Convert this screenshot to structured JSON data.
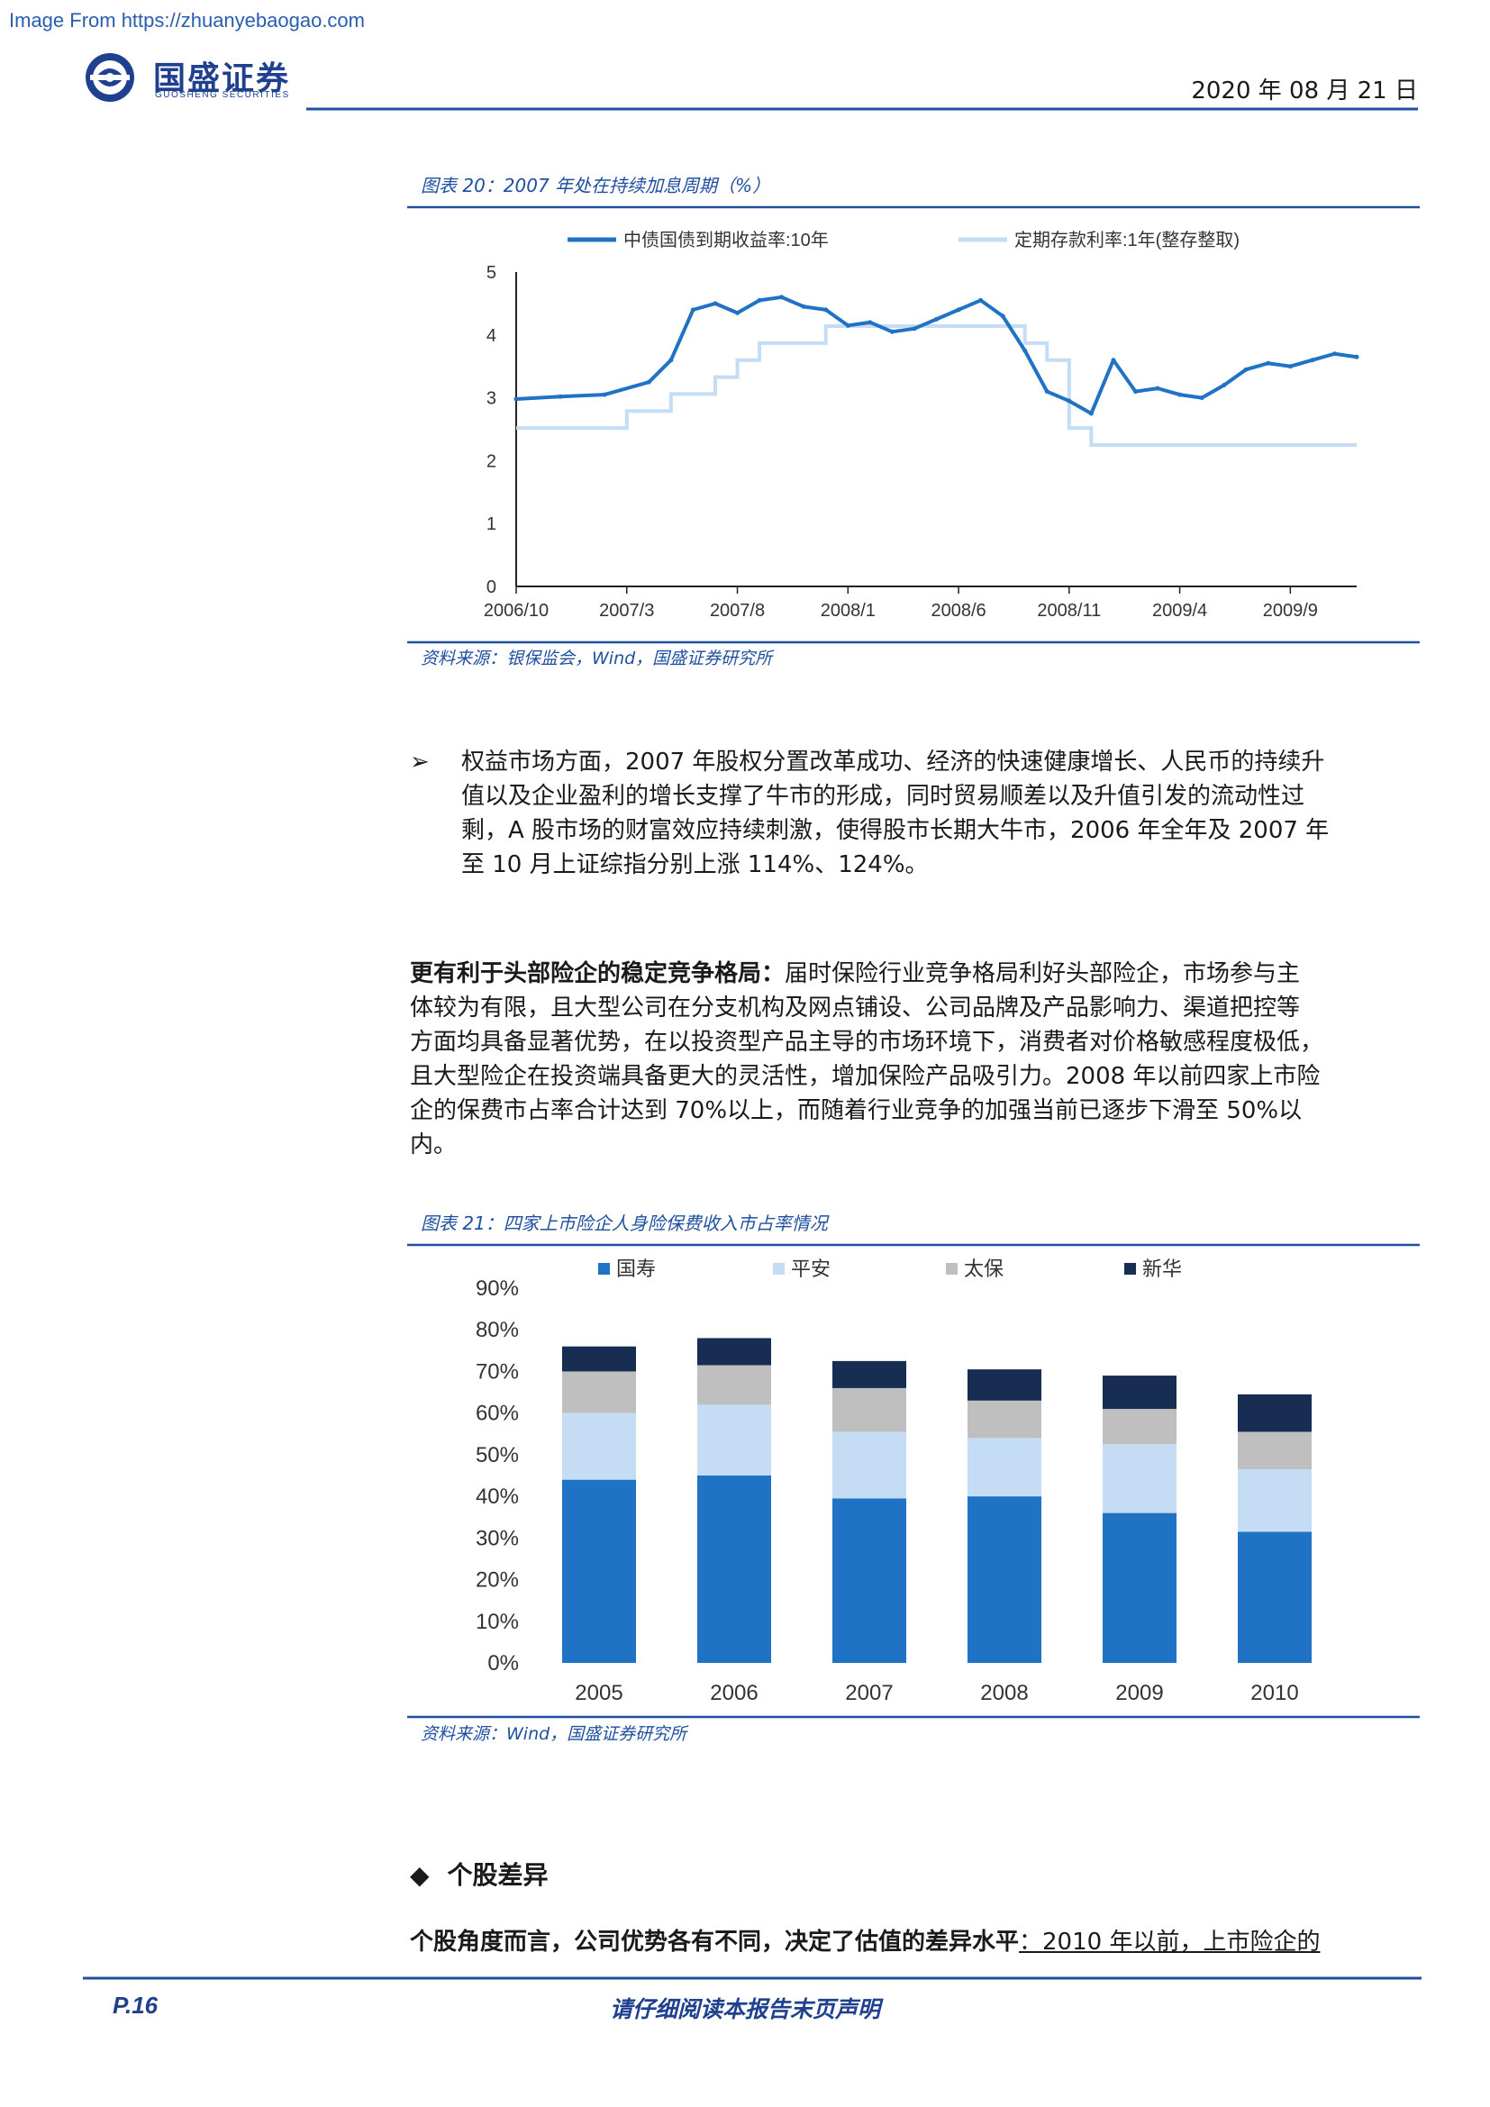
{
  "watermark": "Image From https://zhuanyebaogao.com",
  "header": {
    "logo_cn": "国盛证券",
    "logo_en": "GUOSHENG SECURITIES",
    "date": "2020 年 08 月 21 日"
  },
  "colors": {
    "brand": "#1f3f8f",
    "caption_blue": "#1f4f9f",
    "rule": "#1f4f9f",
    "series_dark": "#1f72c4",
    "series_light": "#c5ddf4",
    "series_gray": "#bfbfbf",
    "series_navy": "#172d52"
  },
  "figure20": {
    "caption": "图表 20：2007 年处在持续加息周期（%）",
    "source": "资料来源：银保监会，Wind，国盛证券研究所"
  },
  "figure21": {
    "caption": "图表 21：四家上市险企人身险保费收入市占率情况",
    "source": "资料来源：Wind，国盛证券研究所"
  },
  "bullet1": {
    "marker": "➢",
    "lines": [
      "权益市场方面，2007 年股权分置改革成功、经济的快速健康增长、人民币的持续升",
      "值以及企业盈利的增长支撑了牛市的形成，同时贸易顺差以及升值引发的流动性过",
      "剩，A 股市场的财富效应持续刺激，使得股市长期大牛市，2006 年全年及 2007 年",
      "至 10 月上证综指分别上涨 114%、124%。"
    ]
  },
  "para2": {
    "bold": "更有利于头部险企的稳定竞争格局：",
    "line1_rest": "届时保险行业竞争格局利好头部险企，市场参与主",
    "lines": [
      "体较为有限，且大型公司在分支机构及网点铺设、公司品牌及产品影响力、渠道把控等",
      "方面均具备显著优势，在以投资型产品主导的市场环境下，消费者对价格敏感程度极低，",
      "且大型险企在投资端具备更大的灵活性，增加保险产品吸引力。2008 年以前四家上市险",
      "企的保费市占率合计达到 70%以上，而随着行业竞争的加强当前已逐步下滑至 50%以",
      "内。"
    ]
  },
  "section": {
    "marker": "◆",
    "title": "个股差异"
  },
  "para3": {
    "bold": "个股角度而言，公司优势各有不同，决定了估值的差异水平",
    "rest": "：2010 年以前，上市险企的"
  },
  "footer": {
    "page": "P.16",
    "note": "请仔细阅读本报告末页声明"
  },
  "chart_data": [
    {
      "type": "line",
      "title": "",
      "xlabel": "",
      "ylabel": "",
      "ylim": [
        0,
        5
      ],
      "yticks": [
        "0",
        "1",
        "2",
        "3",
        "4",
        "5"
      ],
      "x_tick_labels": [
        "2006/10",
        "2007/3",
        "2007/8",
        "2008/1",
        "2008/6",
        "2008/11",
        "2009/4",
        "2009/9"
      ],
      "legend_position": "top",
      "series": [
        {
          "name": "中债国债到期收益率:10年",
          "color": "#1f72c4",
          "x": [
            "2006/10",
            "2006/12",
            "2007/2",
            "2007/4",
            "2007/5",
            "2007/6",
            "2007/7",
            "2007/8",
            "2007/9",
            "2007/10",
            "2007/11",
            "2007/12",
            "2008/1",
            "2008/2",
            "2008/3",
            "2008/4",
            "2008/5",
            "2008/6",
            "2008/7",
            "2008/8",
            "2008/9",
            "2008/10",
            "2008/11",
            "2008/12",
            "2009/1",
            "2009/2",
            "2009/3",
            "2009/4",
            "2009/5",
            "2009/6",
            "2009/7",
            "2009/8",
            "2009/9",
            "2009/10",
            "2009/11",
            "2009/12"
          ],
          "values": [
            2.98,
            3.02,
            3.05,
            3.25,
            3.6,
            4.4,
            4.5,
            4.35,
            4.55,
            4.6,
            4.45,
            4.4,
            4.15,
            4.2,
            4.05,
            4.1,
            4.25,
            4.4,
            4.55,
            4.3,
            3.75,
            3.1,
            2.95,
            2.75,
            3.6,
            3.1,
            3.15,
            3.05,
            3.0,
            3.2,
            3.45,
            3.55,
            3.5,
            3.6,
            3.7,
            3.65
          ]
        },
        {
          "name": "定期存款利率:1年(整存整取)",
          "color": "#c5ddf4",
          "x": [
            "2006/10",
            "2007/3",
            "2007/5",
            "2007/7",
            "2007/8",
            "2007/9",
            "2007/12",
            "2008/9",
            "2008/10",
            "2008/11",
            "2008/12",
            "2009/12"
          ],
          "values": [
            2.52,
            2.79,
            3.06,
            3.33,
            3.6,
            3.87,
            4.14,
            3.87,
            3.6,
            2.52,
            2.25,
            2.25
          ]
        }
      ]
    },
    {
      "type": "bar",
      "stacked": true,
      "title": "",
      "xlabel": "",
      "ylabel": "",
      "ylim": [
        0,
        90
      ],
      "yticks": [
        "0%",
        "10%",
        "20%",
        "30%",
        "40%",
        "50%",
        "60%",
        "70%",
        "80%",
        "90%"
      ],
      "categories": [
        "2005",
        "2006",
        "2007",
        "2008",
        "2009",
        "2010"
      ],
      "legend_position": "top",
      "series": [
        {
          "name": "国寿",
          "color": "#1f72c4",
          "values": [
            44,
            45,
            39.5,
            40,
            36,
            31.5
          ]
        },
        {
          "name": "平安",
          "color": "#c5ddf4",
          "values": [
            16,
            17,
            16,
            14,
            16.5,
            15
          ]
        },
        {
          "name": "太保",
          "color": "#bfbfbf",
          "values": [
            10,
            9.5,
            10.5,
            9,
            8.5,
            9
          ]
        },
        {
          "name": "新华",
          "color": "#172d52",
          "values": [
            6,
            6.5,
            6.5,
            7.5,
            8,
            9
          ]
        }
      ]
    }
  ]
}
